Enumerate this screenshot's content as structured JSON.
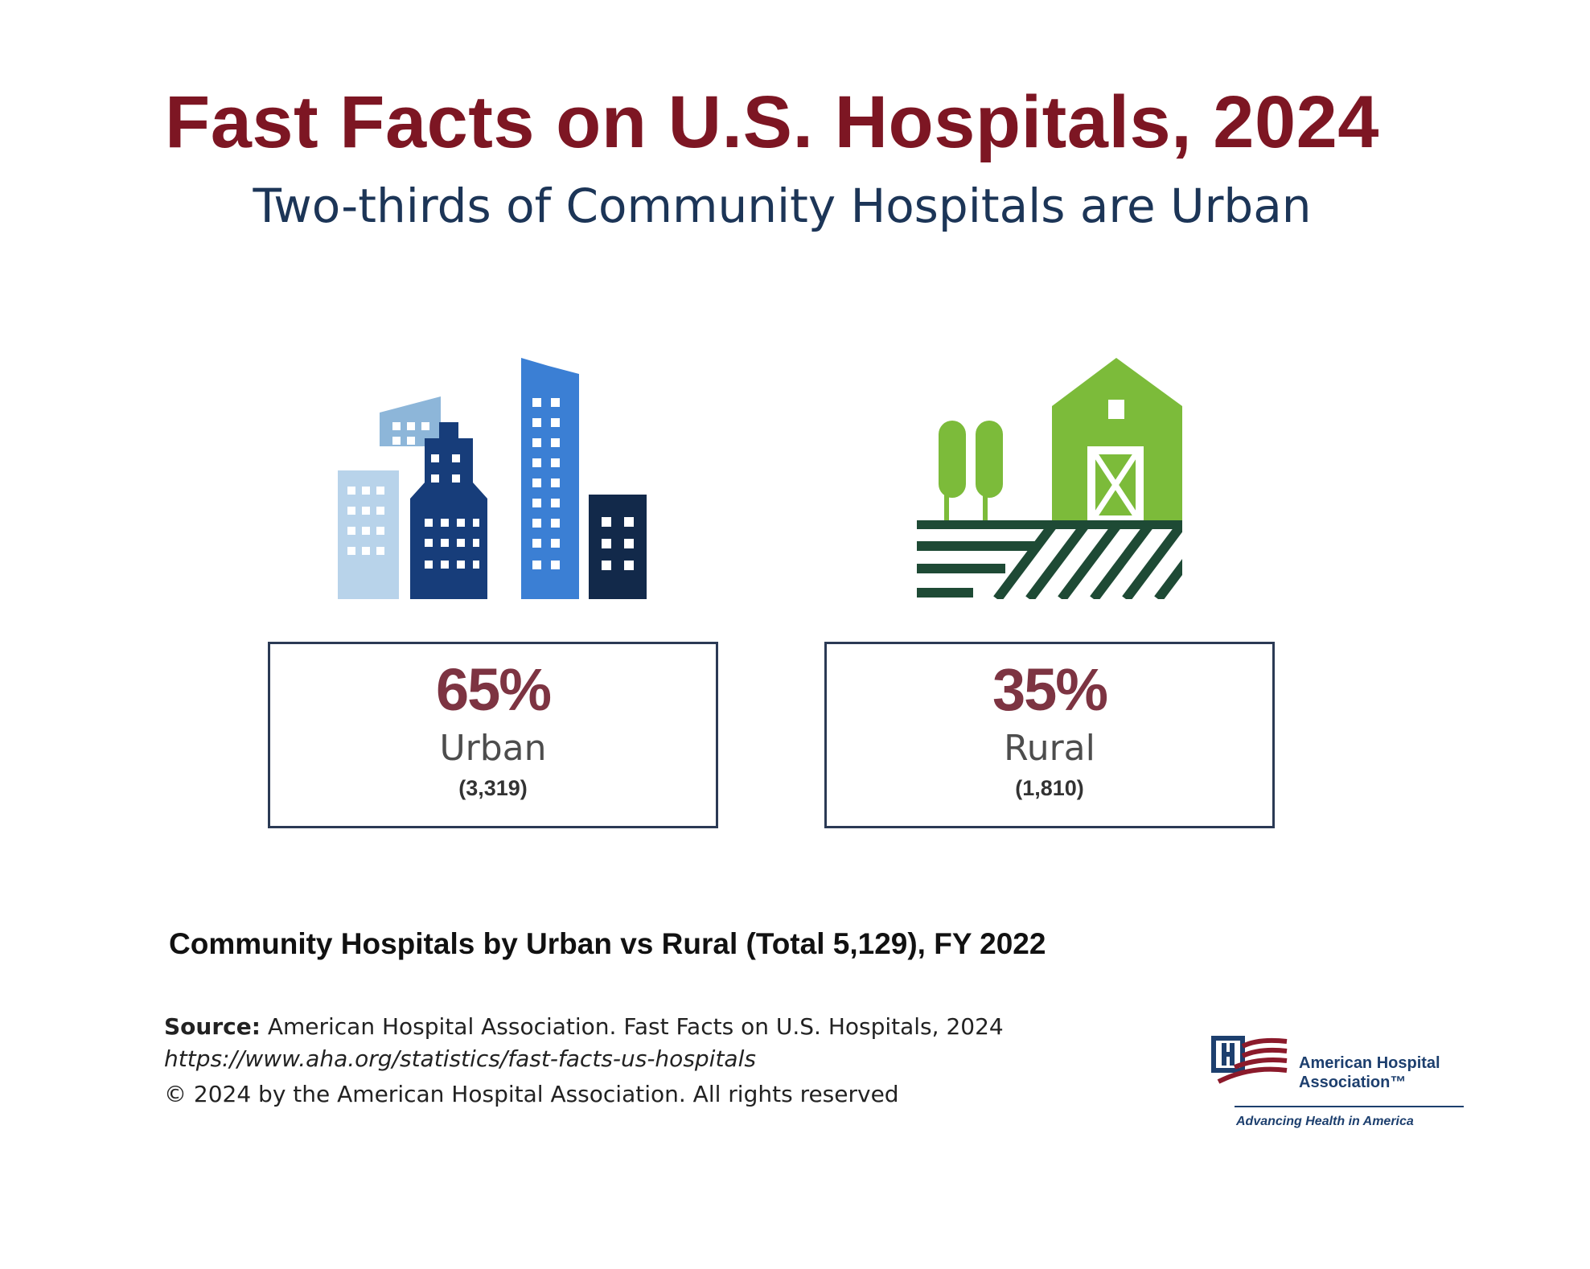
{
  "header": {
    "title": "Fast Facts on U.S. Hospitals, 2024",
    "subtitle": "Two-thirds of Community Hospitals are Urban"
  },
  "icons": {
    "urban": "city-skyline-icon",
    "rural": "barn-farm-icon"
  },
  "stats": [
    {
      "percent": "65%",
      "label": "Urban",
      "count": "(3,319)",
      "value": 65
    },
    {
      "percent": "35%",
      "label": "Rural",
      "count": "(1,810)",
      "value": 35
    }
  ],
  "caption": "Community Hospitals by Urban vs Rural (Total 5,129), FY 2022",
  "source": {
    "label": "Source:",
    "text": " American Hospital Association.  Fast Facts on U.S. Hospitals, 2024",
    "url": "https://www.aha.org/statistics/fast-facts-us-hospitals",
    "copyright": "© 2024 by the American Hospital Association. All rights reserved"
  },
  "logo": {
    "name_line1": "American Hospital",
    "name_line2": "Association™",
    "tagline": "Advancing Health in America"
  },
  "colors": {
    "title": "#7d1623",
    "subtitle": "#1c3557",
    "percent": "#7d3442",
    "box_border": "#2b3a55",
    "rural_green": "#7cbb3a",
    "rural_dark": "#1e4a35"
  }
}
